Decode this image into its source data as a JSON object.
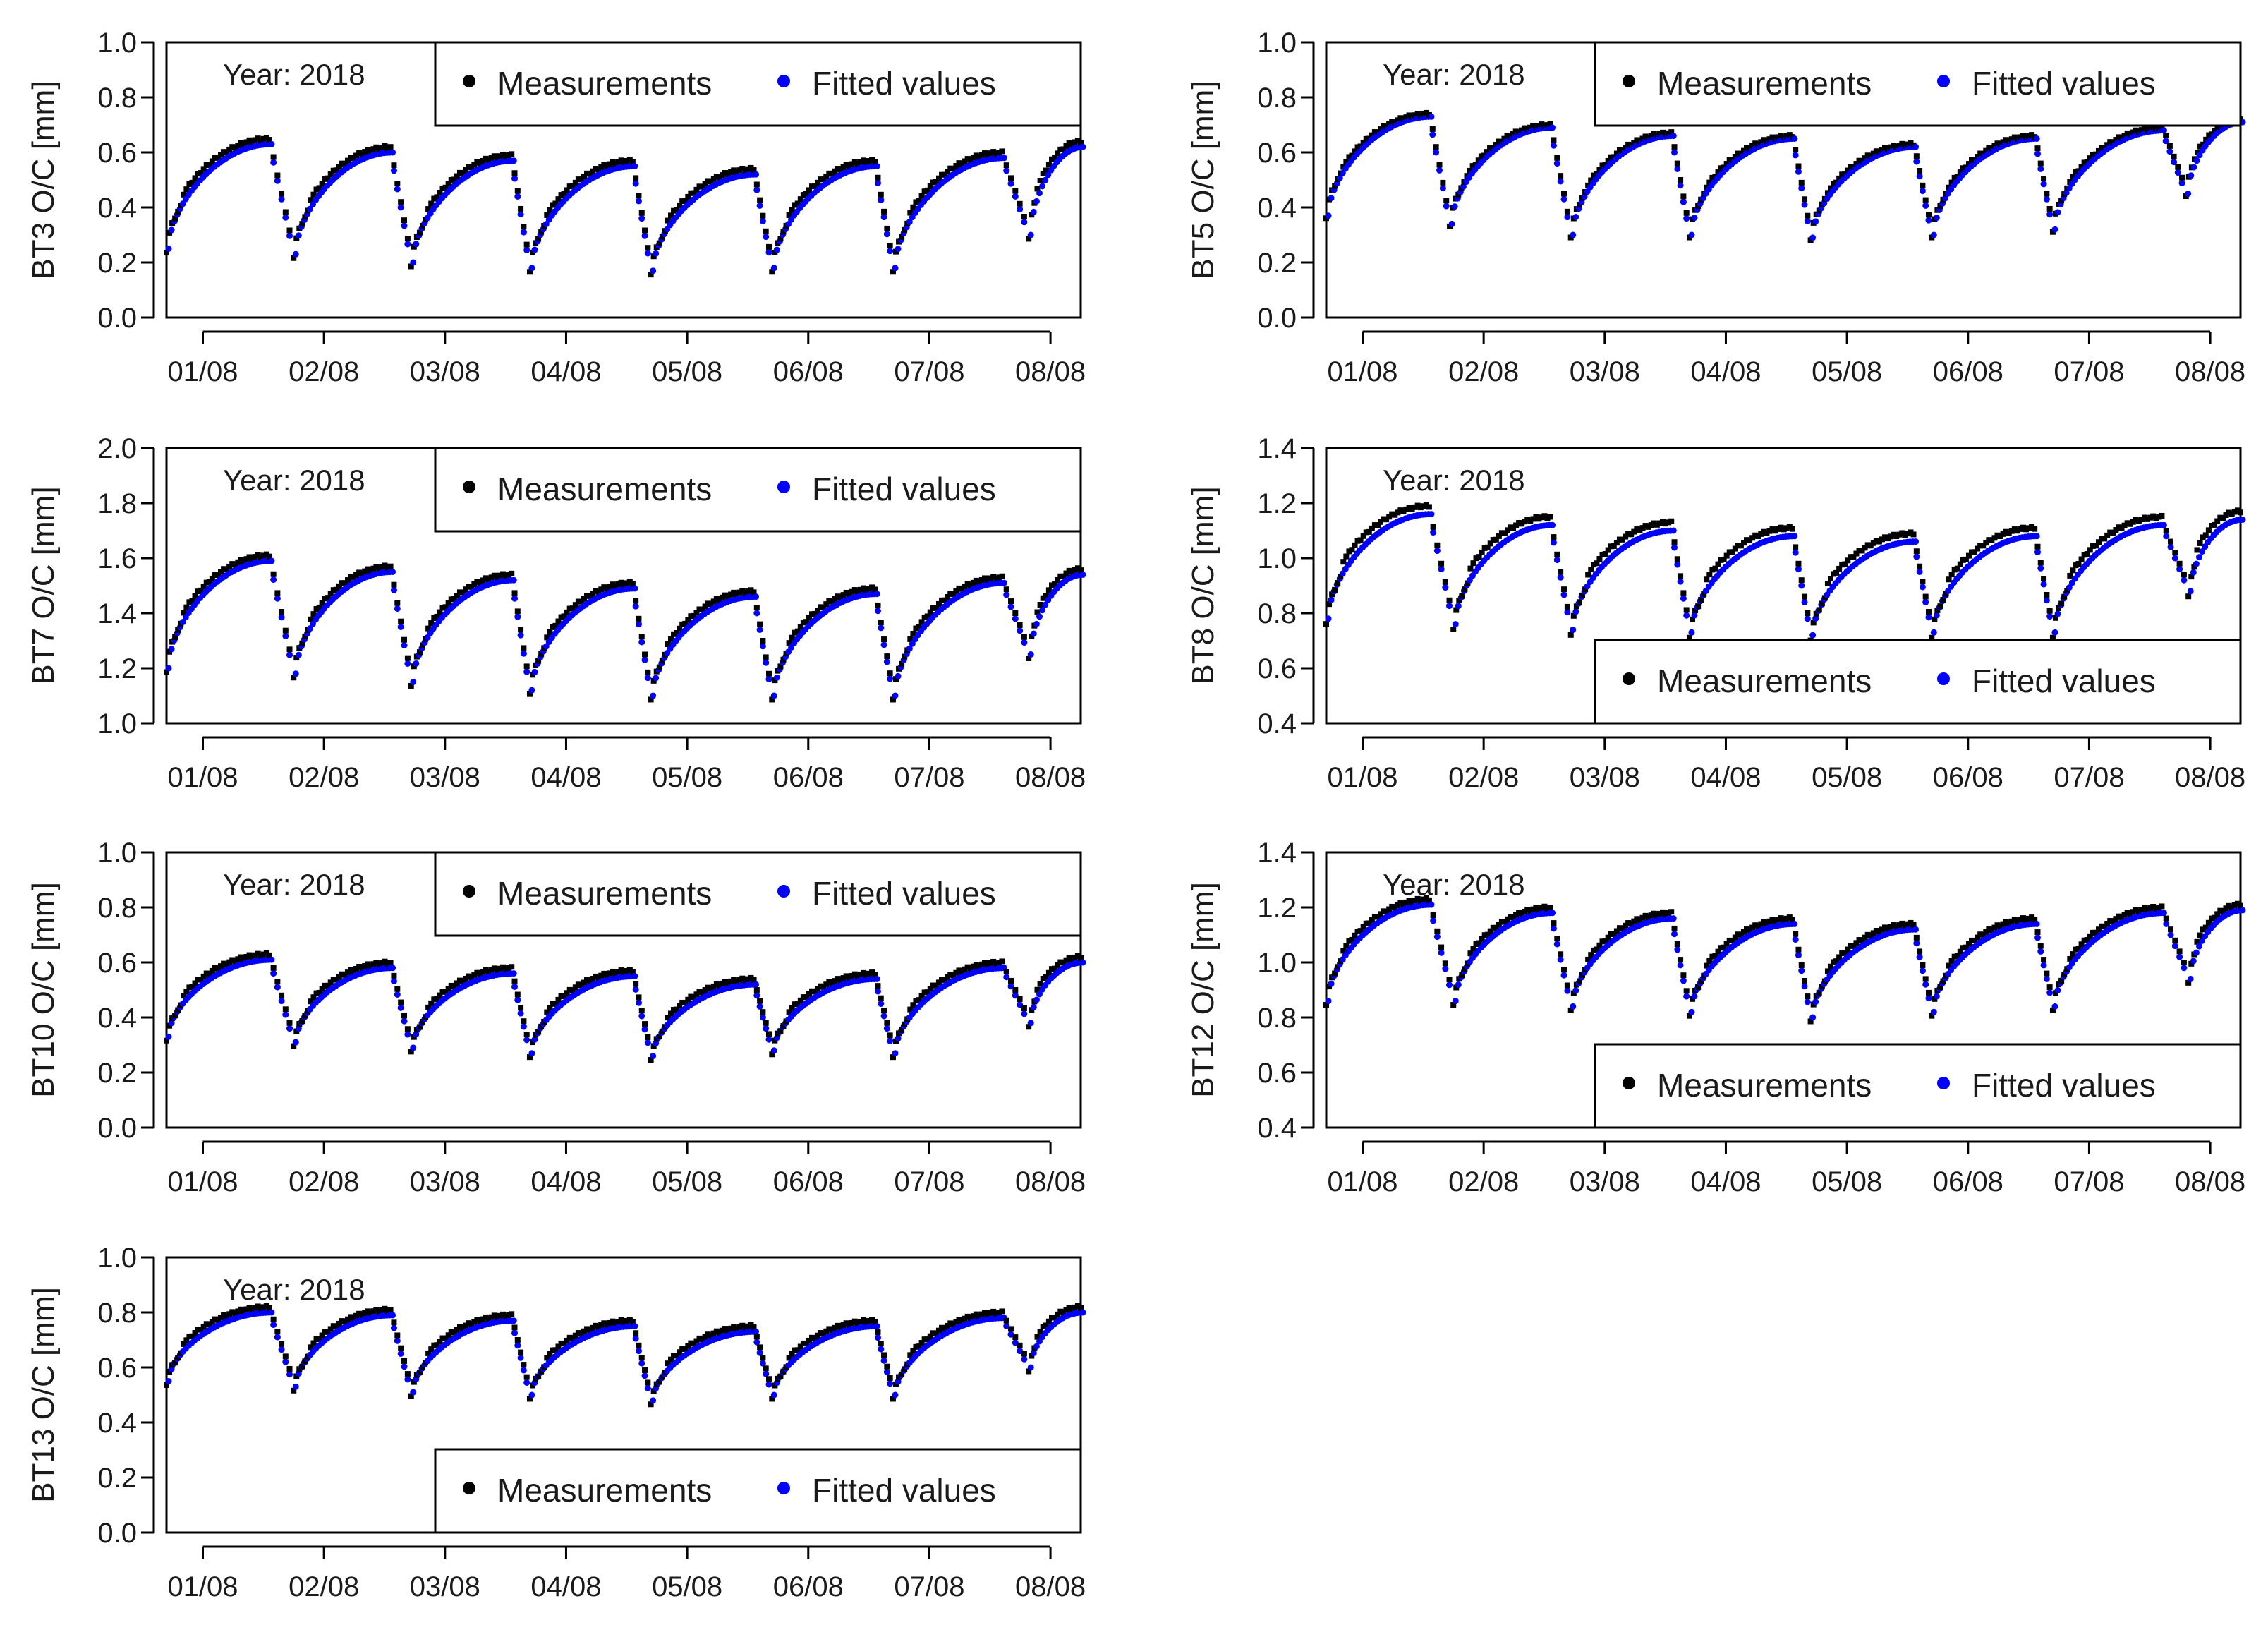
{
  "figure": {
    "year_label": "Year: 2018"
  },
  "legend": {
    "measurements_label": "Measurements",
    "fitted_label": "Fitted values",
    "measurements_color": "#000000",
    "fitted_color": "#0000ff"
  },
  "chart_data": [
    {
      "id": "BT3",
      "type": "scatter",
      "ylabel": "BT3 O/C [mm]",
      "ylim": [
        0.0,
        1.0
      ],
      "yticks": [
        "0.0",
        "0.2",
        "0.4",
        "0.6",
        "0.8",
        "1.0"
      ],
      "legend_position": "top-right",
      "xlabel": "",
      "xlim": [
        0.7,
        8.25
      ],
      "xticks": [
        "01/08",
        "02/08",
        "03/08",
        "04/08",
        "05/08",
        "06/08",
        "07/08",
        "08/08"
      ],
      "cycles": [
        {
          "t0": 0.7,
          "end": 1.55,
          "min": 0.25,
          "max": 0.63
        },
        {
          "t0": 1.75,
          "end": 2.55,
          "min": 0.23,
          "max": 0.6
        },
        {
          "t0": 2.72,
          "end": 3.55,
          "min": 0.2,
          "max": 0.57
        },
        {
          "t0": 3.7,
          "end": 4.55,
          "min": 0.18,
          "max": 0.55
        },
        {
          "t0": 4.7,
          "end": 5.55,
          "min": 0.17,
          "max": 0.52
        },
        {
          "t0": 5.7,
          "end": 6.55,
          "min": 0.18,
          "max": 0.55
        },
        {
          "t0": 6.7,
          "end": 7.6,
          "min": 0.18,
          "max": 0.58
        },
        {
          "t0": 7.82,
          "end": 8.25,
          "min": 0.3,
          "max": 0.62
        }
      ],
      "meas_offset": 0.02
    },
    {
      "id": "BT5",
      "type": "scatter",
      "ylabel": "BT5 O/C [mm]",
      "ylim": [
        0.0,
        1.0
      ],
      "yticks": [
        "0.0",
        "0.2",
        "0.4",
        "0.6",
        "0.8",
        "1.0"
      ],
      "legend_position": "top-right",
      "xlabel": "",
      "xlim": [
        0.7,
        8.25
      ],
      "xticks": [
        "01/08",
        "02/08",
        "03/08",
        "04/08",
        "05/08",
        "06/08",
        "07/08",
        "08/08"
      ],
      "cycles": [
        {
          "t0": 0.7,
          "end": 1.55,
          "min": 0.37,
          "max": 0.73
        },
        {
          "t0": 1.72,
          "end": 2.55,
          "min": 0.34,
          "max": 0.69
        },
        {
          "t0": 2.72,
          "end": 3.55,
          "min": 0.3,
          "max": 0.66
        },
        {
          "t0": 3.7,
          "end": 4.55,
          "min": 0.3,
          "max": 0.65
        },
        {
          "t0": 4.7,
          "end": 5.55,
          "min": 0.29,
          "max": 0.62
        },
        {
          "t0": 5.7,
          "end": 6.55,
          "min": 0.3,
          "max": 0.65
        },
        {
          "t0": 6.7,
          "end": 7.6,
          "min": 0.32,
          "max": 0.68
        },
        {
          "t0": 7.8,
          "end": 8.25,
          "min": 0.45,
          "max": 0.71
        }
      ],
      "meas_offset": 0.01
    },
    {
      "id": "BT7",
      "type": "scatter",
      "ylabel": "BT7 O/C [mm]",
      "ylim": [
        1.0,
        2.0
      ],
      "yticks": [
        "1.0",
        "1.2",
        "1.4",
        "1.6",
        "1.8",
        "2.0"
      ],
      "legend_position": "top-right",
      "xlabel": "",
      "xlim": [
        0.7,
        8.25
      ],
      "xticks": [
        "01/08",
        "02/08",
        "03/08",
        "04/08",
        "05/08",
        "06/08",
        "07/08",
        "08/08"
      ],
      "cycles": [
        {
          "t0": 0.7,
          "end": 1.55,
          "min": 1.2,
          "max": 1.59
        },
        {
          "t0": 1.75,
          "end": 2.55,
          "min": 1.18,
          "max": 1.55
        },
        {
          "t0": 2.72,
          "end": 3.55,
          "min": 1.15,
          "max": 1.52
        },
        {
          "t0": 3.7,
          "end": 4.55,
          "min": 1.12,
          "max": 1.49
        },
        {
          "t0": 4.7,
          "end": 5.55,
          "min": 1.1,
          "max": 1.46
        },
        {
          "t0": 5.7,
          "end": 6.55,
          "min": 1.1,
          "max": 1.47
        },
        {
          "t0": 6.7,
          "end": 7.6,
          "min": 1.1,
          "max": 1.51
        },
        {
          "t0": 7.82,
          "end": 8.25,
          "min": 1.25,
          "max": 1.54
        }
      ],
      "meas_offset": 0.02
    },
    {
      "id": "BT8",
      "type": "scatter",
      "ylabel": "BT8 O/C [mm]",
      "ylim": [
        0.4,
        1.4
      ],
      "yticks": [
        "0.4",
        "0.6",
        "0.8",
        "1.0",
        "1.2",
        "1.4"
      ],
      "legend_position": "bottom-right",
      "xlabel": "",
      "xlim": [
        0.7,
        8.25
      ],
      "xticks": [
        "01/08",
        "02/08",
        "03/08",
        "04/08",
        "05/08",
        "06/08",
        "07/08",
        "08/08"
      ],
      "cycles": [
        {
          "t0": 0.7,
          "end": 1.55,
          "min": 0.78,
          "max": 1.16
        },
        {
          "t0": 1.75,
          "end": 2.55,
          "min": 0.76,
          "max": 1.12
        },
        {
          "t0": 2.72,
          "end": 3.55,
          "min": 0.74,
          "max": 1.1
        },
        {
          "t0": 3.7,
          "end": 4.55,
          "min": 0.73,
          "max": 1.08
        },
        {
          "t0": 4.7,
          "end": 5.55,
          "min": 0.72,
          "max": 1.06
        },
        {
          "t0": 5.7,
          "end": 6.55,
          "min": 0.73,
          "max": 1.08
        },
        {
          "t0": 6.7,
          "end": 7.6,
          "min": 0.73,
          "max": 1.12
        },
        {
          "t0": 7.82,
          "end": 8.25,
          "min": 0.88,
          "max": 1.14
        }
      ],
      "meas_offset": 0.03
    },
    {
      "id": "BT10",
      "type": "scatter",
      "ylabel": "BT10 O/C [mm]",
      "ylim": [
        0.0,
        1.0
      ],
      "yticks": [
        "0.0",
        "0.2",
        "0.4",
        "0.6",
        "0.8",
        "1.0"
      ],
      "legend_position": "top-right",
      "xlabel": "",
      "xlim": [
        0.7,
        8.25
      ],
      "xticks": [
        "01/08",
        "02/08",
        "03/08",
        "04/08",
        "05/08",
        "06/08",
        "07/08",
        "08/08"
      ],
      "cycles": [
        {
          "t0": 0.7,
          "end": 1.55,
          "min": 0.33,
          "max": 0.61
        },
        {
          "t0": 1.75,
          "end": 2.55,
          "min": 0.31,
          "max": 0.58
        },
        {
          "t0": 2.72,
          "end": 3.55,
          "min": 0.29,
          "max": 0.56
        },
        {
          "t0": 3.7,
          "end": 4.55,
          "min": 0.27,
          "max": 0.55
        },
        {
          "t0": 4.7,
          "end": 5.55,
          "min": 0.26,
          "max": 0.52
        },
        {
          "t0": 5.7,
          "end": 6.55,
          "min": 0.28,
          "max": 0.54
        },
        {
          "t0": 6.7,
          "end": 7.6,
          "min": 0.27,
          "max": 0.58
        },
        {
          "t0": 7.82,
          "end": 8.25,
          "min": 0.38,
          "max": 0.6
        }
      ],
      "meas_offset": 0.02
    },
    {
      "id": "BT12",
      "type": "scatter",
      "ylabel": "BT12 O/C [mm]",
      "ylim": [
        0.4,
        1.4
      ],
      "yticks": [
        "0.4",
        "0.6",
        "0.8",
        "1.0",
        "1.2",
        "1.4"
      ],
      "legend_position": "bottom-right",
      "xlabel": "",
      "xlim": [
        0.7,
        8.25
      ],
      "xticks": [
        "01/08",
        "02/08",
        "03/08",
        "04/08",
        "05/08",
        "06/08",
        "07/08",
        "08/08"
      ],
      "cycles": [
        {
          "t0": 0.7,
          "end": 1.55,
          "min": 0.86,
          "max": 1.21
        },
        {
          "t0": 1.75,
          "end": 2.55,
          "min": 0.86,
          "max": 1.18
        },
        {
          "t0": 2.72,
          "end": 3.55,
          "min": 0.84,
          "max": 1.16
        },
        {
          "t0": 3.7,
          "end": 4.55,
          "min": 0.82,
          "max": 1.14
        },
        {
          "t0": 4.7,
          "end": 5.55,
          "min": 0.8,
          "max": 1.12
        },
        {
          "t0": 5.7,
          "end": 6.55,
          "min": 0.82,
          "max": 1.14
        },
        {
          "t0": 6.7,
          "end": 7.6,
          "min": 0.84,
          "max": 1.18
        },
        {
          "t0": 7.82,
          "end": 8.25,
          "min": 0.94,
          "max": 1.19
        }
      ],
      "meas_offset": 0.02
    },
    {
      "id": "BT13",
      "type": "scatter",
      "ylabel": "BT13 O/C [mm]",
      "ylim": [
        0.0,
        1.0
      ],
      "yticks": [
        "0.0",
        "0.2",
        "0.4",
        "0.6",
        "0.8",
        "1.0"
      ],
      "legend_position": "bottom-right",
      "xlabel": "",
      "xlim": [
        0.7,
        8.25
      ],
      "xticks": [
        "01/08",
        "02/08",
        "03/08",
        "04/08",
        "05/08",
        "06/08",
        "07/08",
        "08/08"
      ],
      "cycles": [
        {
          "t0": 0.7,
          "end": 1.55,
          "min": 0.55,
          "max": 0.8
        },
        {
          "t0": 1.75,
          "end": 2.55,
          "min": 0.53,
          "max": 0.79
        },
        {
          "t0": 2.72,
          "end": 3.55,
          "min": 0.51,
          "max": 0.77
        },
        {
          "t0": 3.7,
          "end": 4.55,
          "min": 0.5,
          "max": 0.75
        },
        {
          "t0": 4.7,
          "end": 5.55,
          "min": 0.48,
          "max": 0.73
        },
        {
          "t0": 5.7,
          "end": 6.55,
          "min": 0.5,
          "max": 0.75
        },
        {
          "t0": 6.7,
          "end": 7.6,
          "min": 0.5,
          "max": 0.78
        },
        {
          "t0": 7.82,
          "end": 8.25,
          "min": 0.6,
          "max": 0.8
        }
      ],
      "meas_offset": 0.02
    }
  ]
}
